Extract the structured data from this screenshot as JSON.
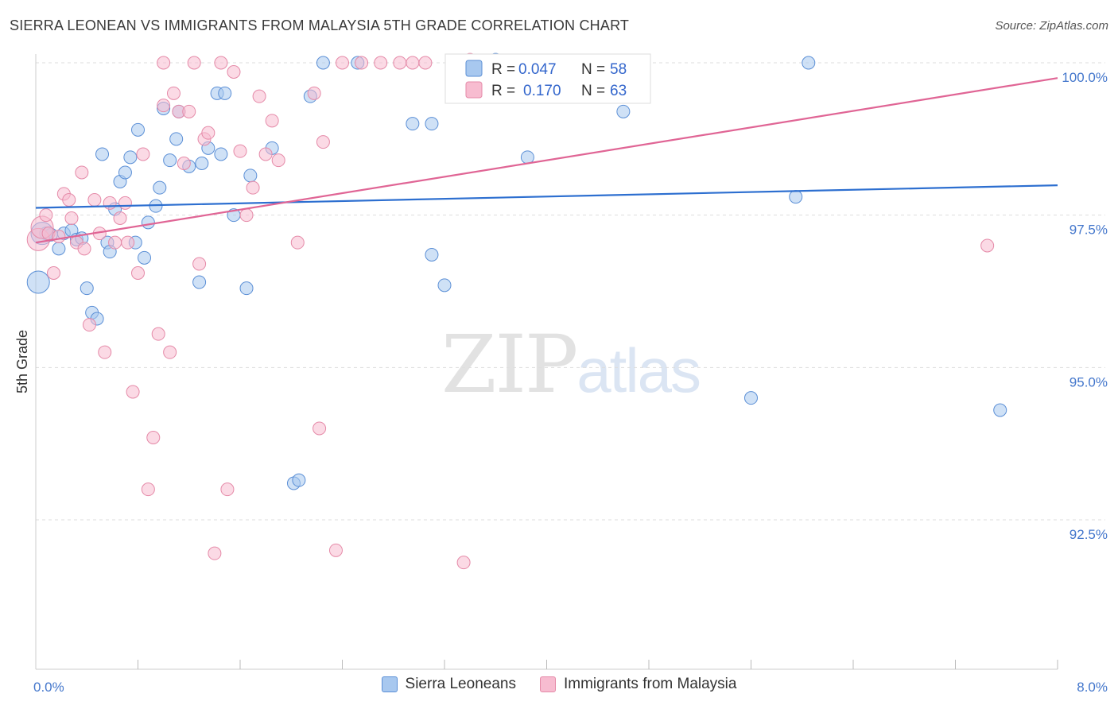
{
  "title": "SIERRA LEONEAN VS IMMIGRANTS FROM MALAYSIA 5TH GRADE CORRELATION CHART",
  "source": "Source: ZipAtlas.com",
  "watermark": {
    "zip": "ZIP",
    "atlas": "atlas"
  },
  "legend_top": [
    {
      "r_label": "R =",
      "r_value": "0.047",
      "n_label": "N =",
      "n_value": "58"
    },
    {
      "r_label": "R =",
      "r_value": "0.170",
      "n_label": "N =",
      "n_value": "63"
    }
  ],
  "legend_bottom": [
    "Sierra Leoneans",
    "Immigrants from Malaysia"
  ],
  "colors": {
    "blue_fill": "#a8c8ef",
    "blue_stroke": "#5b8fd6",
    "blue_line": "#2d6fd0",
    "pink_fill": "#f7bcd0",
    "pink_stroke": "#e58aa8",
    "pink_line": "#e06595",
    "grid": "#dddddd",
    "tick_text": "#4477cc"
  },
  "chart_data": {
    "type": "scatter",
    "title": "SIERRA LEONEAN VS IMMIGRANTS FROM MALAYSIA 5TH GRADE CORRELATION CHART",
    "xlabel": "",
    "ylabel": "5th Grade",
    "xlim": [
      0.0,
      8.0
    ],
    "ylim": [
      90.0,
      100.4
    ],
    "x_tick_labels": [
      "0.0%",
      "8.0%"
    ],
    "y_ticks": [
      92.5,
      95.0,
      97.5,
      100.0
    ],
    "y_tick_labels": [
      "92.5%",
      "95.0%",
      "97.5%",
      "100.0%"
    ],
    "series": [
      {
        "name": "Sierra Leoneans",
        "color": "blue",
        "trend": {
          "x0": 0.0,
          "y0": 97.62,
          "x1": 8.0,
          "y1": 97.99
        },
        "points": [
          [
            0.02,
            96.4
          ],
          [
            0.08,
            97.2
          ],
          [
            0.12,
            97.18
          ],
          [
            0.18,
            96.95
          ],
          [
            0.22,
            97.2
          ],
          [
            0.28,
            97.25
          ],
          [
            0.32,
            97.1
          ],
          [
            0.36,
            97.12
          ],
          [
            0.4,
            96.3
          ],
          [
            0.44,
            95.9
          ],
          [
            0.48,
            95.8
          ],
          [
            0.52,
            98.5
          ],
          [
            0.56,
            97.05
          ],
          [
            0.58,
            96.9
          ],
          [
            0.62,
            97.6
          ],
          [
            0.66,
            98.05
          ],
          [
            0.7,
            98.2
          ],
          [
            0.74,
            98.45
          ],
          [
            0.78,
            97.05
          ],
          [
            0.8,
            98.9
          ],
          [
            0.85,
            96.8
          ],
          [
            0.88,
            97.38
          ],
          [
            0.94,
            97.65
          ],
          [
            0.97,
            97.95
          ],
          [
            1.0,
            99.25
          ],
          [
            1.05,
            98.4
          ],
          [
            1.1,
            98.75
          ],
          [
            1.12,
            99.2
          ],
          [
            1.2,
            98.3
          ],
          [
            1.28,
            96.4
          ],
          [
            1.3,
            98.35
          ],
          [
            1.35,
            98.6
          ],
          [
            1.42,
            99.5
          ],
          [
            1.45,
            98.5
          ],
          [
            1.48,
            99.5
          ],
          [
            1.55,
            97.5
          ],
          [
            1.65,
            96.3
          ],
          [
            1.68,
            98.15
          ],
          [
            1.85,
            98.6
          ],
          [
            2.02,
            93.1
          ],
          [
            2.06,
            93.15
          ],
          [
            2.15,
            99.45
          ],
          [
            2.25,
            100.0
          ],
          [
            2.52,
            100.0
          ],
          [
            2.95,
            99.0
          ],
          [
            3.1,
            96.85
          ],
          [
            3.1,
            99.0
          ],
          [
            3.2,
            96.35
          ],
          [
            3.65,
            99.65
          ],
          [
            3.6,
            100.05
          ],
          [
            3.85,
            98.45
          ],
          [
            4.3,
            100.0
          ],
          [
            4.6,
            99.2
          ],
          [
            5.6,
            94.5
          ],
          [
            5.95,
            97.8
          ],
          [
            6.05,
            100.0
          ],
          [
            7.55,
            94.3
          ],
          [
            0.05,
            97.2
          ]
        ]
      },
      {
        "name": "Immigrants from Malaysia",
        "color": "pink",
        "trend": {
          "x0": 0.0,
          "y0": 97.05,
          "x1": 8.0,
          "y1": 99.75
        },
        "points": [
          [
            0.02,
            97.1
          ],
          [
            0.05,
            97.3
          ],
          [
            0.08,
            97.5
          ],
          [
            0.1,
            97.2
          ],
          [
            0.14,
            96.55
          ],
          [
            0.18,
            97.15
          ],
          [
            0.22,
            97.85
          ],
          [
            0.26,
            97.75
          ],
          [
            0.28,
            97.45
          ],
          [
            0.32,
            97.05
          ],
          [
            0.36,
            98.2
          ],
          [
            0.38,
            96.95
          ],
          [
            0.42,
            95.7
          ],
          [
            0.46,
            97.75
          ],
          [
            0.5,
            97.2
          ],
          [
            0.54,
            95.25
          ],
          [
            0.58,
            97.7
          ],
          [
            0.62,
            97.05
          ],
          [
            0.66,
            97.45
          ],
          [
            0.7,
            97.7
          ],
          [
            0.72,
            97.05
          ],
          [
            0.76,
            94.6
          ],
          [
            0.8,
            96.55
          ],
          [
            0.84,
            98.5
          ],
          [
            0.88,
            93.0
          ],
          [
            0.92,
            93.85
          ],
          [
            0.96,
            95.55
          ],
          [
            1.0,
            99.3
          ],
          [
            1.05,
            95.25
          ],
          [
            1.08,
            99.5
          ],
          [
            1.12,
            99.2
          ],
          [
            1.16,
            98.35
          ],
          [
            1.2,
            99.2
          ],
          [
            1.24,
            100.0
          ],
          [
            1.28,
            96.7
          ],
          [
            1.32,
            98.75
          ],
          [
            1.35,
            98.85
          ],
          [
            1.4,
            91.95
          ],
          [
            1.45,
            100.0
          ],
          [
            1.5,
            93.0
          ],
          [
            1.55,
            99.85
          ],
          [
            1.6,
            98.55
          ],
          [
            1.65,
            97.5
          ],
          [
            1.7,
            97.95
          ],
          [
            1.75,
            99.45
          ],
          [
            1.8,
            98.5
          ],
          [
            1.85,
            99.05
          ],
          [
            1.9,
            98.4
          ],
          [
            2.05,
            97.05
          ],
          [
            2.18,
            99.5
          ],
          [
            2.22,
            94.0
          ],
          [
            2.25,
            98.7
          ],
          [
            2.35,
            92.0
          ],
          [
            2.4,
            100.0
          ],
          [
            2.55,
            100.0
          ],
          [
            2.7,
            100.0
          ],
          [
            2.85,
            100.0
          ],
          [
            2.95,
            100.0
          ],
          [
            3.05,
            100.0
          ],
          [
            3.35,
            91.8
          ],
          [
            3.4,
            100.05
          ],
          [
            7.45,
            97.0
          ],
          [
            1.0,
            100.0
          ]
        ]
      }
    ]
  }
}
